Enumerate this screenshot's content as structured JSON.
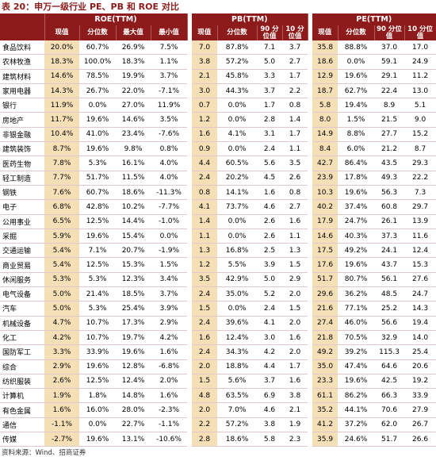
{
  "title": "表 20：申万一级行业 PE、PB 和 ROE 对比",
  "table": {
    "groups": [
      "ROE(TTM)",
      "PB(TTM)",
      "PE(TTM)"
    ],
    "subheaders": [
      [
        "现值",
        "分位数",
        "最大值",
        "最小值"
      ],
      [
        "现值",
        "分位数",
        "90 分位值",
        "10 分位值"
      ],
      [
        "现值",
        "分位数",
        "90 分位值",
        "10 分位值"
      ]
    ],
    "rows": [
      [
        "食品饮料",
        "20.0%",
        "60.7%",
        "26.9%",
        "7.5%",
        "7.0",
        "87.8%",
        "7.1",
        "3.7",
        "35.8",
        "88.8%",
        "37.0",
        "17.0"
      ],
      [
        "农林牧渔",
        "18.3%",
        "100.0%",
        "18.3%",
        "1.1%",
        "3.8",
        "57.2%",
        "5.0",
        "2.7",
        "18.6",
        "0.0%",
        "59.1",
        "24.9"
      ],
      [
        "建筑材料",
        "14.6%",
        "78.5%",
        "19.9%",
        "3.7%",
        "2.1",
        "45.8%",
        "3.3",
        "1.7",
        "12.9",
        "19.6%",
        "29.1",
        "11.2"
      ],
      [
        "家用电器",
        "14.3%",
        "26.7%",
        "22.0%",
        "-7.1%",
        "3.0",
        "44.3%",
        "3.7",
        "2.2",
        "18.7",
        "62.7%",
        "22.4",
        "13.0"
      ],
      [
        "银行",
        "11.9%",
        "0.0%",
        "27.0%",
        "11.9%",
        "0.7",
        "0.0%",
        "1.7",
        "0.8",
        "5.8",
        "19.4%",
        "8.9",
        "5.1"
      ],
      [
        "房地产",
        "11.7%",
        "19.6%",
        "14.6%",
        "3.5%",
        "1.2",
        "0.0%",
        "2.8",
        "1.4",
        "8.0",
        "1.5%",
        "21.5",
        "9.0"
      ],
      [
        "非银金融",
        "10.4%",
        "41.0%",
        "23.4%",
        "-7.6%",
        "1.6",
        "4.1%",
        "3.1",
        "1.7",
        "14.9",
        "8.8%",
        "27.7",
        "15.2"
      ],
      [
        "建筑装饰",
        "8.7%",
        "19.6%",
        "9.8%",
        "0.8%",
        "0.9",
        "0.0%",
        "2.4",
        "1.1",
        "8.4",
        "6.0%",
        "21.2",
        "8.7"
      ],
      [
        "医药生物",
        "7.8%",
        "5.3%",
        "16.1%",
        "4.0%",
        "4.4",
        "60.5%",
        "5.6",
        "3.5",
        "42.7",
        "86.4%",
        "43.5",
        "29.3"
      ],
      [
        "轻工制造",
        "7.7%",
        "51.7%",
        "11.5%",
        "4.0%",
        "2.4",
        "20.2%",
        "4.5",
        "2.6",
        "23.9",
        "17.8%",
        "49.3",
        "22.2"
      ],
      [
        "钢铁",
        "7.6%",
        "60.7%",
        "18.6%",
        "-11.3%",
        "0.8",
        "14.1%",
        "1.6",
        "0.8",
        "10.3",
        "19.6%",
        "56.3",
        "7.3"
      ],
      [
        "电子",
        "6.8%",
        "42.8%",
        "10.2%",
        "-7.7%",
        "4.1",
        "73.7%",
        "4.6",
        "2.7",
        "40.2",
        "37.4%",
        "60.8",
        "29.7"
      ],
      [
        "公用事业",
        "6.5%",
        "12.5%",
        "14.4%",
        "-1.0%",
        "1.4",
        "0.0%",
        "2.6",
        "1.6",
        "17.9",
        "24.7%",
        "26.1",
        "13.9"
      ],
      [
        "采掘",
        "5.9%",
        "19.6%",
        "15.4%",
        "0.0%",
        "1.1",
        "0.0%",
        "2.6",
        "1.1",
        "14.6",
        "40.3%",
        "37.3",
        "11.6"
      ],
      [
        "交通运输",
        "5.4%",
        "7.1%",
        "20.7%",
        "-1.9%",
        "1.3",
        "16.8%",
        "2.5",
        "1.3",
        "17.5",
        "49.2%",
        "24.1",
        "12.4"
      ],
      [
        "商业贸易",
        "5.4%",
        "12.5%",
        "15.3%",
        "1.5%",
        "1.2",
        "5.5%",
        "3.9",
        "1.5",
        "17.6",
        "19.6%",
        "43.7",
        "15.3"
      ],
      [
        "休闲服务",
        "5.3%",
        "5.3%",
        "12.3%",
        "3.4%",
        "3.5",
        "42.9%",
        "5.0",
        "2.9",
        "51.7",
        "80.7%",
        "56.1",
        "27.6"
      ],
      [
        "电气设备",
        "5.0%",
        "21.4%",
        "18.5%",
        "3.7%",
        "2.4",
        "35.0%",
        "5.2",
        "2.0",
        "29.6",
        "36.2%",
        "48.5",
        "24.7"
      ],
      [
        "汽车",
        "5.0%",
        "5.3%",
        "25.4%",
        "3.9%",
        "1.5",
        "0.0%",
        "2.4",
        "1.5",
        "21.6",
        "77.1%",
        "25.2",
        "14.3"
      ],
      [
        "机械设备",
        "4.7%",
        "10.7%",
        "17.3%",
        "2.9%",
        "2.4",
        "39.6%",
        "4.1",
        "2.0",
        "27.4",
        "46.0%",
        "56.6",
        "19.4"
      ],
      [
        "化工",
        "4.2%",
        "10.7%",
        "19.7%",
        "4.2%",
        "1.6",
        "12.4%",
        "3.0",
        "1.6",
        "21.8",
        "70.5%",
        "32.9",
        "14.0"
      ],
      [
        "国防军工",
        "3.3%",
        "33.9%",
        "19.6%",
        "1.6%",
        "2.4",
        "34.3%",
        "4.2",
        "2.0",
        "49.2",
        "39.2%",
        "115.3",
        "25.4"
      ],
      [
        "综合",
        "2.9%",
        "19.6%",
        "12.8%",
        "-6.8%",
        "2.0",
        "18.8%",
        "4.4",
        "1.7",
        "35.0",
        "47.4%",
        "64.6",
        "20.6"
      ],
      [
        "纺织服装",
        "2.6%",
        "12.5%",
        "12.4%",
        "2.0%",
        "1.5",
        "5.6%",
        "3.7",
        "1.6",
        "23.3",
        "19.6%",
        "42.5",
        "19.2"
      ],
      [
        "计算机",
        "1.9%",
        "1.8%",
        "14.8%",
        "1.6%",
        "4.8",
        "63.5%",
        "6.9",
        "3.8",
        "61.1",
        "86.2%",
        "66.3",
        "33.9"
      ],
      [
        "有色金属",
        "1.6%",
        "16.0%",
        "28.0%",
        "-2.3%",
        "2.0",
        "7.0%",
        "4.6",
        "2.1",
        "35.2",
        "44.1%",
        "70.6",
        "27.9"
      ],
      [
        "通信",
        "-1.1%",
        "0.0%",
        "22.7%",
        "-1.1%",
        "2.2",
        "57.2%",
        "3.8",
        "1.9",
        "41.2",
        "37.2%",
        "62.0",
        "26.7"
      ],
      [
        "传媒",
        "-2.7%",
        "19.6%",
        "13.1%",
        "-10.6%",
        "2.8",
        "18.6%",
        "5.8",
        "2.3",
        "35.9",
        "24.6%",
        "51.7",
        "26.6"
      ]
    ]
  },
  "source": "资料来源：Wind、招商证券"
}
